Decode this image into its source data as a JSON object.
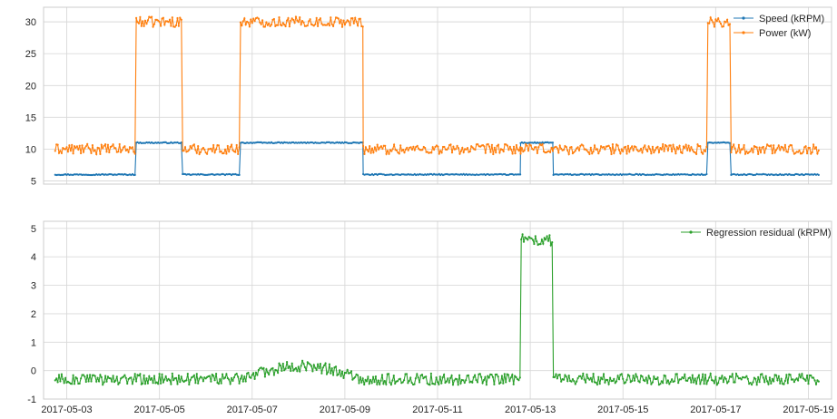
{
  "chart_data": [
    {
      "type": "line",
      "title": "",
      "xlabel": "",
      "ylabel": "",
      "x_type": "date",
      "xlim": [
        "2017-05-02 12:00",
        "2017-05-19 12:00"
      ],
      "ylim": [
        4.5,
        32.3
      ],
      "yticks": [
        5,
        10,
        15,
        20,
        25,
        30
      ],
      "xticks": [],
      "grid": true,
      "legend_position": "upper-right",
      "segments": [
        {
          "start": "2017-05-02 18:00",
          "end": "2017-05-04 12:00",
          "state": "low"
        },
        {
          "start": "2017-05-04 12:00",
          "end": "2017-05-05 12:00",
          "state": "high"
        },
        {
          "start": "2017-05-05 12:00",
          "end": "2017-05-06 18:00",
          "state": "low"
        },
        {
          "start": "2017-05-06 18:00",
          "end": "2017-05-09 09:30",
          "state": "high"
        },
        {
          "start": "2017-05-09 09:30",
          "end": "2017-05-12 19:00",
          "state": "low"
        },
        {
          "start": "2017-05-12 19:00",
          "end": "2017-05-13 12:00",
          "state": "high-speed-only"
        },
        {
          "start": "2017-05-13 12:00",
          "end": "2017-05-16 20:00",
          "state": "low"
        },
        {
          "start": "2017-05-16 20:00",
          "end": "2017-05-17 08:00",
          "state": "high"
        },
        {
          "start": "2017-05-17 08:00",
          "end": "2017-05-19 06:00",
          "state": "low"
        }
      ],
      "series": [
        {
          "name": "Speed (kRPM)",
          "color": "#1f77b4",
          "low_level": 6.0,
          "high_level": 11.0,
          "noise": 0.08
        },
        {
          "name": "Power (kW)",
          "color": "#ff7f0e",
          "low_level": 10.0,
          "high_level": 30.0,
          "noise": 0.8
        }
      ]
    },
    {
      "type": "line",
      "title": "",
      "xlabel": "",
      "ylabel": "",
      "x_type": "date",
      "xlim": [
        "2017-05-02 12:00",
        "2017-05-19 12:00"
      ],
      "ylim": [
        -1,
        5.25
      ],
      "yticks": [
        -1,
        0,
        1,
        2,
        3,
        4,
        5
      ],
      "xticks": [
        "2017-05-03",
        "2017-05-05",
        "2017-05-07",
        "2017-05-09",
        "2017-05-11",
        "2017-05-13",
        "2017-05-15",
        "2017-05-17",
        "2017-05-19"
      ],
      "grid": true,
      "legend_position": "upper-right",
      "series": [
        {
          "name": "Regression residual (kRPM)",
          "color": "#2ca02c",
          "baseline": -0.3,
          "noise": 0.2,
          "hump": {
            "start": "2017-05-06 18:00",
            "end": "2017-05-09 09:30",
            "amplitude": 0.45
          },
          "spike": {
            "start": "2017-05-12 19:00",
            "end": "2017-05-13 12:00",
            "level": 4.6
          }
        }
      ]
    }
  ]
}
